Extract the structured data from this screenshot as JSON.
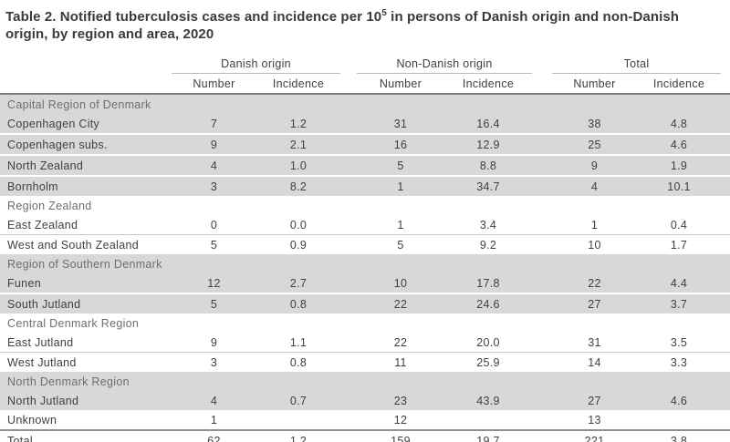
{
  "title": {
    "prefix": "Table 2. Notified tuberculosis cases and incidence per 10",
    "superscript": "5",
    "suffix": " in persons of Danish origin and non-Danish origin, by region and area, 2020"
  },
  "colors": {
    "row_shade": "#d8d8d8",
    "header_rule": "#7e7e7e",
    "total_rule": "#919191",
    "text": "#3f3f3f",
    "section_text": "#6e6e6e"
  },
  "table": {
    "column_groups": [
      {
        "label": "Danish origin"
      },
      {
        "label": "Non-Danish origin"
      },
      {
        "label": "Total"
      }
    ],
    "subheaders": {
      "number": "Number",
      "incidence": "Incidence"
    },
    "rows": [
      {
        "kind": "section",
        "label": "Capital Region of Denmark",
        "shaded": true
      },
      {
        "kind": "data",
        "label": "Copenhagen City",
        "shaded": true,
        "values": [
          "7",
          "1.2",
          "31",
          "16.4",
          "38",
          "4.8"
        ]
      },
      {
        "kind": "data",
        "label": "Copenhagen subs.",
        "shaded": true,
        "values": [
          "9",
          "2.1",
          "16",
          "12.9",
          "25",
          "4.6"
        ]
      },
      {
        "kind": "data",
        "label": "North Zealand",
        "shaded": true,
        "values": [
          "4",
          "1.0",
          "5",
          "8.8",
          "9",
          "1.9"
        ]
      },
      {
        "kind": "data",
        "label": "Bornholm",
        "shaded": true,
        "values": [
          "3",
          "8.2",
          "1",
          "34.7",
          "4",
          "10.1"
        ]
      },
      {
        "kind": "section",
        "label": "Region Zealand",
        "shaded": false
      },
      {
        "kind": "data",
        "label": "East Zealand",
        "shaded": false,
        "values": [
          "0",
          "0.0",
          "1",
          "3.4",
          "1",
          "0.4"
        ]
      },
      {
        "kind": "data",
        "label": "West and South Zealand",
        "shaded": false,
        "values": [
          "5",
          "0.9",
          "5",
          "9.2",
          "10",
          "1.7"
        ]
      },
      {
        "kind": "section",
        "label": "Region of Southern Denmark",
        "shaded": true
      },
      {
        "kind": "data",
        "label": "Funen",
        "shaded": true,
        "values": [
          "12",
          "2.7",
          "10",
          "17.8",
          "22",
          "4.4"
        ]
      },
      {
        "kind": "data",
        "label": "South Jutland",
        "shaded": true,
        "values": [
          "5",
          "0.8",
          "22",
          "24.6",
          "27",
          "3.7"
        ]
      },
      {
        "kind": "section",
        "label": "Central Denmark Region",
        "shaded": false
      },
      {
        "kind": "data",
        "label": "East Jutland",
        "shaded": false,
        "values": [
          "9",
          "1.1",
          "22",
          "20.0",
          "31",
          "3.5"
        ]
      },
      {
        "kind": "data",
        "label": "West Jutland",
        "shaded": false,
        "values": [
          "3",
          "0.8",
          "11",
          "25.9",
          "14",
          "3.3"
        ]
      },
      {
        "kind": "section",
        "label": "North Denmark Region",
        "shaded": true
      },
      {
        "kind": "data",
        "label": "North Jutland",
        "shaded": true,
        "values": [
          "4",
          "0.7",
          "23",
          "43.9",
          "27",
          "4.6"
        ]
      },
      {
        "kind": "data",
        "label": "Unknown",
        "shaded": false,
        "values": [
          "1",
          "",
          "12",
          "",
          "13",
          ""
        ]
      },
      {
        "kind": "total",
        "label": "Total",
        "shaded": false,
        "values": [
          "62",
          "1.2",
          "159",
          "19.7",
          "221",
          "3.8"
        ]
      }
    ]
  }
}
